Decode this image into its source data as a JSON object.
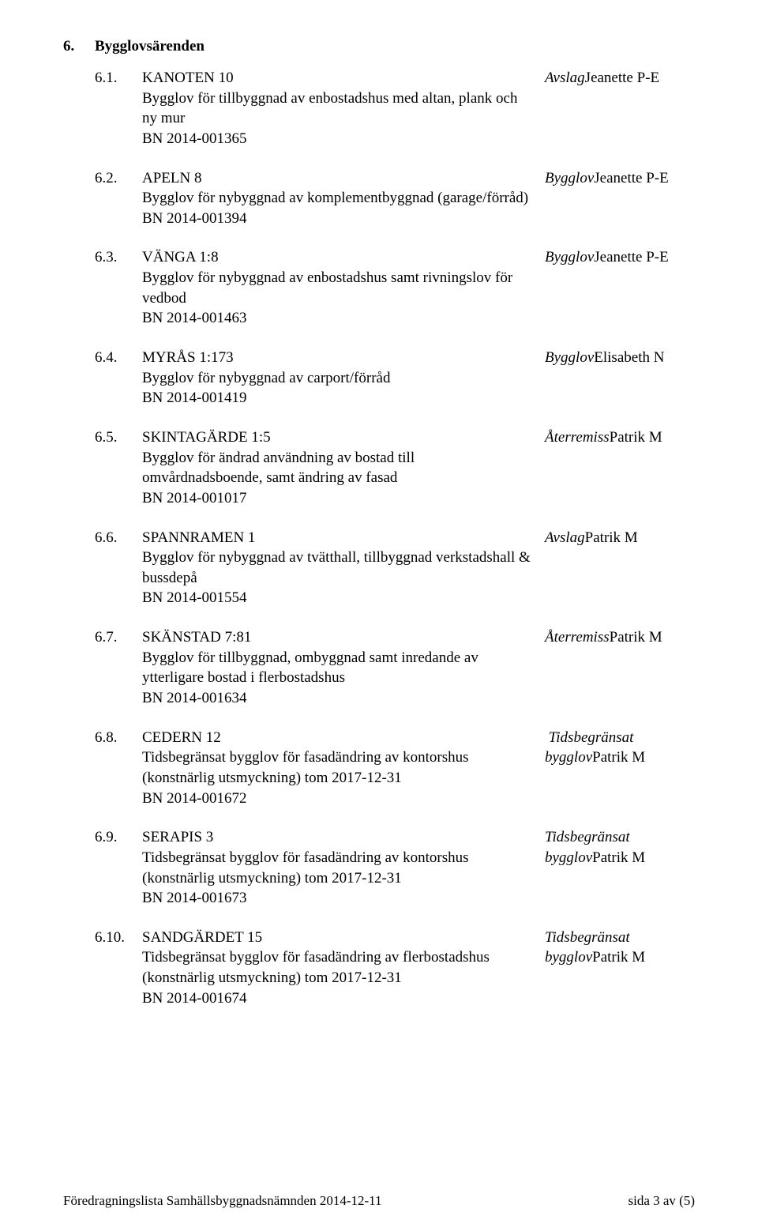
{
  "section": {
    "number": "6.",
    "title": "Bygglovsärenden"
  },
  "items": [
    {
      "num": "6.1.",
      "lines": [
        "KANOTEN 10",
        "Bygglov för tillbyggnad av enbostadshus med altan, plank och ny mur",
        "BN 2014-001365"
      ],
      "status_lines": [
        {
          "text": "Avslag",
          "italic": true
        },
        {
          "text": "Jeanette P-E",
          "italic": false
        }
      ]
    },
    {
      "num": "6.2.",
      "lines": [
        "APELN 8",
        "Bygglov för nybyggnad av komplementbyggnad (garage/förråd)",
        "BN 2014-001394"
      ],
      "status_lines": [
        {
          "text": "Bygglov",
          "italic": true
        },
        {
          "text": "Jeanette P-E",
          "italic": false
        }
      ]
    },
    {
      "num": "6.3.",
      "lines": [
        "VÄNGA 1:8",
        "Bygglov för nybyggnad av enbostadshus samt rivningslov för vedbod",
        "BN 2014-001463"
      ],
      "status_lines": [
        {
          "text": "Bygglov",
          "italic": true
        },
        {
          "text": "Jeanette P-E",
          "italic": false
        }
      ]
    },
    {
      "num": "6.4.",
      "lines": [
        "MYRÅS 1:173",
        "Bygglov för nybyggnad av carport/förråd",
        "BN 2014-001419"
      ],
      "status_lines": [
        {
          "text": "Bygglov",
          "italic": true
        },
        {
          "text": "Elisabeth N",
          "italic": false
        }
      ]
    },
    {
      "num": "6.5.",
      "lines": [
        "SKINTAGÄRDE 1:5",
        "Bygglov för ändrad användning av bostad till omvårdnadsboende, samt ändring av fasad",
        "BN 2014-001017"
      ],
      "status_lines": [
        {
          "text": "Återremiss",
          "italic": true
        },
        {
          "text": "Patrik M",
          "italic": false
        }
      ]
    },
    {
      "num": "6.6.",
      "lines": [
        "SPANNRAMEN 1",
        "Bygglov för nybyggnad av tvätthall, tillbyggnad verkstadshall & bussdepå",
        "BN 2014-001554"
      ],
      "status_lines": [
        {
          "text": "Avslag",
          "italic": true
        },
        {
          "text": "Patrik M",
          "italic": false
        }
      ]
    },
    {
      "num": "6.7.",
      "lines": [
        "SKÄNSTAD 7:81",
        "Bygglov för tillbyggnad, ombyggnad samt inredande av ytterligare bostad i flerbostadshus",
        "BN 2014-001634"
      ],
      "status_lines": [
        {
          "text": "Återremiss",
          "italic": true
        },
        {
          "text": "Patrik M",
          "italic": false
        }
      ]
    },
    {
      "num": "6.8.",
      "lines": [
        "CEDERN 12",
        "Tidsbegränsat bygglov för fasadändring av kontorshus (konstnärlig utsmyckning) tom 2017-12-31",
        "BN 2014-001672"
      ],
      "status_lines": [
        {
          "text": "",
          "italic": false
        },
        {
          "text": "Tidsbegränsat bygglov",
          "italic": true
        },
        {
          "text": "Patrik M",
          "italic": false
        }
      ]
    },
    {
      "num": "6.9.",
      "lines": [
        "SERAPIS 3",
        "Tidsbegränsat bygglov för fasadändring av kontorshus (konstnärlig utsmyckning) tom 2017-12-31",
        "BN 2014-001673"
      ],
      "status_lines": [
        {
          "text": "Tidsbegränsat bygglov",
          "italic": true
        },
        {
          "text": "Patrik M",
          "italic": false
        }
      ]
    },
    {
      "num": "6.10.",
      "lines": [
        "SANDGÄRDET 15",
        "Tidsbegränsat bygglov för fasadändring av flerbostadshus (konstnärlig utsmyckning) tom 2017-12-31",
        "BN 2014-001674"
      ],
      "status_lines": [
        {
          "text": "Tidsbegränsat bygglov",
          "italic": true
        },
        {
          "text": "Patrik M",
          "italic": false
        }
      ]
    }
  ],
  "footer": {
    "left": "Föredragningslista Samhällsbyggnadsnämnden 2014-12-11",
    "right": "sida 3 av (5)"
  }
}
